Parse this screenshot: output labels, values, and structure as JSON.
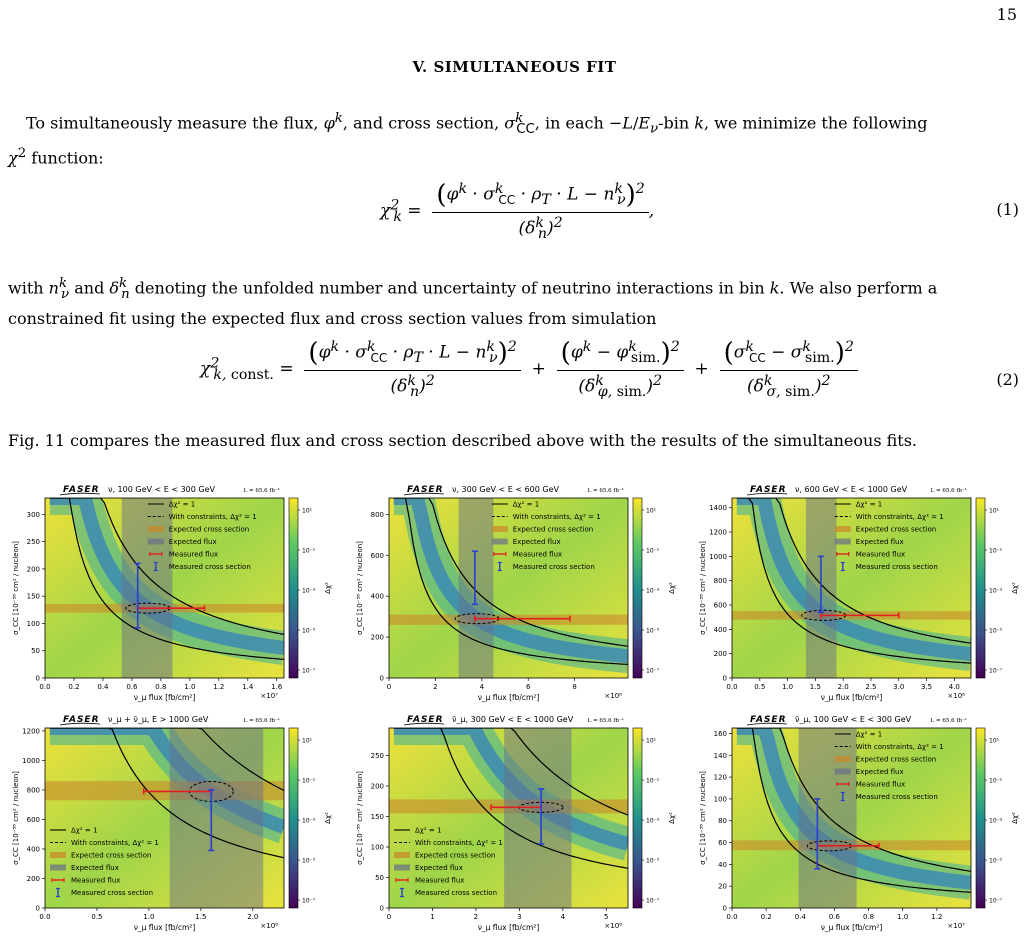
{
  "page": {
    "number": "15"
  },
  "section": {
    "title": "V.   SIMULTANEOUS FIT"
  },
  "paragraphs": {
    "p1_a": "To simultaneously measure the flux, ",
    "p1_b": ", and cross section, ",
    "p1_c": ", in each ",
    "p1_d": "-bin ",
    "p1_e": ", we minimize the following",
    "p1_f": " function:",
    "p2_a": "with ",
    "p2_b": " and ",
    "p2_c": " denoting the unfolded number and uncertainty of neutrino interactions in bin ",
    "p2_d": ". We also perform a constrained fit using the expected flux and cross section values from simulation",
    "p3": "Fig. 11 compares the measured flux and cross section described above with the results of the simultaneous fits."
  },
  "equations": {
    "eq1_number": "(1)",
    "eq2_number": "(2)"
  },
  "figure": {
    "logo": "FASER",
    "lumi": "L = 65.6 fb⁻¹",
    "ylabel": "σ_CC [10⁻³⁸ cm² / nucleon]",
    "colorbar_label": "Δχ²",
    "colorbar_ticks": [
      "10¹",
      "10⁻¹",
      "10⁻³",
      "10⁻⁵",
      "10⁻⁷"
    ],
    "legend": [
      "Δχ² = 1",
      "With constraints, Δχ² = 1",
      "Expected cross section",
      "Expected flux",
      "Measured flux",
      "Measured cross section"
    ],
    "colors": {
      "curve": "#000000",
      "xsec_band": "#c98a2c",
      "flux_band": "#6a6f8a",
      "measured_flux": "#e02020",
      "measured_xsec": "#2a3fd0"
    }
  },
  "chart_data": [
    {
      "type": "heatmap",
      "title": "ν, 100 GeV < E < 300 GeV",
      "xlabel": "ν_μ flux [fb/cm²]",
      "x_multiplier": "×10⁷",
      "xlim": [
        0,
        1.65
      ],
      "ylim": [
        0,
        330
      ],
      "xticks": [
        "0.0",
        "0.2",
        "0.4",
        "0.6",
        "0.8",
        "1.0",
        "1.2",
        "1.4",
        "1.6"
      ],
      "xtick_values": [
        0,
        0.2,
        0.4,
        0.6,
        0.8,
        1.0,
        1.2,
        1.4,
        1.6
      ],
      "yticks": [
        "0",
        "50",
        "100",
        "150",
        "200",
        "250",
        "300"
      ],
      "ytick_values": [
        0,
        50,
        100,
        150,
        200,
        250,
        300
      ],
      "expected_xsec": [
        120,
        136
      ],
      "expected_flux": [
        0.53,
        0.88
      ],
      "measured": {
        "x": 0.71,
        "y": 128,
        "x_err": [
          0.64,
          1.1
        ],
        "y_err": [
          92,
          210
        ]
      },
      "legend_loc": "top-right"
    },
    {
      "type": "heatmap",
      "title": "ν, 300 GeV < E < 600 GeV",
      "xlabel": "ν_μ flux [fb/cm²]",
      "x_multiplier": "×10⁶",
      "xlim": [
        0,
        10.3
      ],
      "ylim": [
        0,
        880
      ],
      "xticks": [
        "0",
        "2",
        "4",
        "6",
        "8"
      ],
      "xtick_values": [
        0,
        2,
        4,
        6,
        8
      ],
      "yticks": [
        "0",
        "200",
        "400",
        "600",
        "800"
      ],
      "ytick_values": [
        0,
        200,
        400,
        600,
        800
      ],
      "expected_xsec": [
        260,
        310
      ],
      "expected_flux": [
        3.0,
        4.5
      ],
      "measured": {
        "x": 3.8,
        "y": 290,
        "x_err": [
          3.7,
          7.8
        ],
        "y_err": [
          360,
          620
        ]
      },
      "legend_loc": "top-right"
    },
    {
      "type": "heatmap",
      "title": "ν, 600 GeV < E < 1000 GeV",
      "xlabel": "ν_μ flux [fb/cm²]",
      "x_multiplier": "×10⁶",
      "xlim": [
        0,
        4.3
      ],
      "ylim": [
        0,
        1480
      ],
      "xticks": [
        "0.0",
        "0.5",
        "1.0",
        "1.5",
        "2.0",
        "2.5",
        "3.0",
        "3.5",
        "4.0"
      ],
      "xtick_values": [
        0,
        0.5,
        1.0,
        1.5,
        2.0,
        2.5,
        3.0,
        3.5,
        4.0
      ],
      "yticks": [
        "0",
        "200",
        "400",
        "600",
        "800",
        "1000",
        "1200",
        "1400"
      ],
      "ytick_values": [
        0,
        200,
        400,
        600,
        800,
        1000,
        1200,
        1400
      ],
      "expected_xsec": [
        480,
        550
      ],
      "expected_flux": [
        1.33,
        1.88
      ],
      "measured": {
        "x": 1.65,
        "y": 515,
        "x_err": [
          1.6,
          3.0
        ],
        "y_err": [
          540,
          1000
        ]
      },
      "legend_loc": "top-right"
    },
    {
      "type": "heatmap",
      "title": "ν_μ + ν̄_μ, E > 1000 GeV",
      "xlabel": "ν_μ flux [fb/cm²]",
      "x_multiplier": "×10⁶",
      "xlim": [
        0,
        2.3
      ],
      "ylim": [
        0,
        1220
      ],
      "xticks": [
        "0.0",
        "0.5",
        "1.0",
        "1.5",
        "2.0"
      ],
      "xtick_values": [
        0,
        0.5,
        1.0,
        1.5,
        2.0
      ],
      "yticks": [
        "0",
        "200",
        "400",
        "600",
        "800",
        "1000",
        "1200"
      ],
      "ytick_values": [
        0,
        200,
        400,
        600,
        800,
        1000,
        1200
      ],
      "expected_xsec": [
        730,
        860
      ],
      "expected_flux": [
        1.2,
        2.1
      ],
      "measured": {
        "x": 1.6,
        "y": 790,
        "x_err": [
          0.95,
          1.6
        ],
        "y_err": [
          390,
          800
        ]
      },
      "legend_loc": "bottom-left"
    },
    {
      "type": "heatmap",
      "title": "ν̄_μ, 300 GeV < E < 1000 GeV",
      "xlabel": "ν_μ flux [fb/cm²]",
      "x_multiplier": "×10⁶",
      "xlim": [
        0,
        5.5
      ],
      "ylim": [
        0,
        295
      ],
      "xticks": [
        "0",
        "1",
        "2",
        "3",
        "4",
        "5"
      ],
      "xtick_values": [
        0,
        1,
        2,
        3,
        4,
        5
      ],
      "yticks": [
        "0",
        "50",
        "100",
        "150",
        "200",
        "250"
      ],
      "ytick_values": [
        0,
        50,
        100,
        150,
        200,
        250
      ],
      "expected_xsec": [
        155,
        178
      ],
      "expected_flux": [
        2.65,
        4.2
      ],
      "measured": {
        "x": 3.5,
        "y": 165,
        "x_err": [
          2.35,
          3.5
        ],
        "y_err": [
          105,
          195
        ]
      },
      "legend_loc": "bottom-left"
    },
    {
      "type": "heatmap",
      "title": "ν̄_μ, 100 GeV < E < 300 GeV",
      "xlabel": "ν_μ flux [fb/cm²]",
      "x_multiplier": "×10⁷",
      "xlim": [
        0,
        1.4
      ],
      "ylim": [
        0,
        165
      ],
      "xticks": [
        "0.0",
        "0.2",
        "0.4",
        "0.6",
        "0.8",
        "1.0",
        "1.2"
      ],
      "xtick_values": [
        0,
        0.2,
        0.4,
        0.6,
        0.8,
        1.0,
        1.2
      ],
      "yticks": [
        "0",
        "20",
        "40",
        "60",
        "80",
        "100",
        "120",
        "140",
        "160"
      ],
      "ytick_values": [
        0,
        20,
        40,
        60,
        80,
        100,
        120,
        140,
        160
      ],
      "expected_xsec": [
        53,
        62
      ],
      "expected_flux": [
        0.39,
        0.73
      ],
      "measured": {
        "x": 0.57,
        "y": 57,
        "x_err": [
          0.5,
          0.86
        ],
        "y_err": [
          36,
          100
        ]
      },
      "legend_loc": "top-right"
    }
  ]
}
